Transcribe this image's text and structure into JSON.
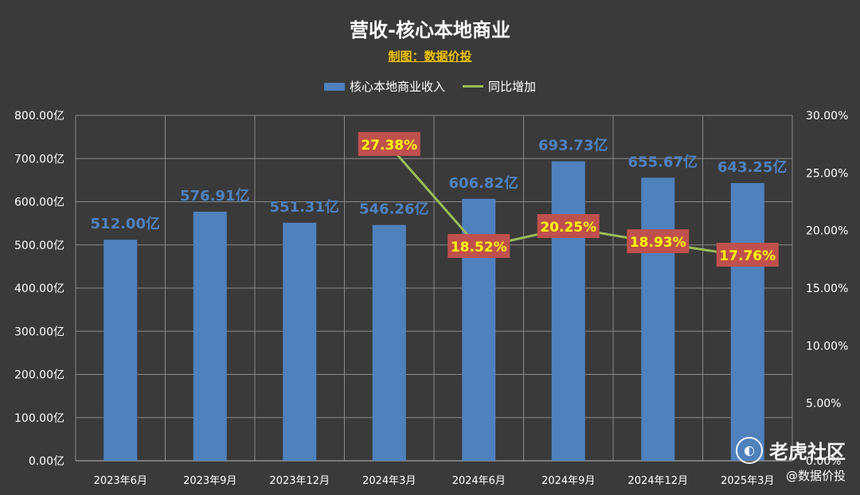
{
  "title": "营收-核心本地商业",
  "subtitle": "制图：数据价投",
  "legend": {
    "bar_label": "核心本地商业收入",
    "line_label": "同比增加"
  },
  "watermark": {
    "brand": "老虎社区",
    "user": "@数据价投"
  },
  "colors": {
    "background": "#3a3a3a",
    "bar": "#4f81bd",
    "line": "#9bbb59",
    "bar_label": "#4f81bd",
    "line_label_bg": "#c0504d",
    "line_label_text": "#ffff00",
    "axis_text": "#ffffff",
    "grid": "#8a8a8a"
  },
  "chart_data": {
    "type": "bar",
    "categories": [
      "2023年6月",
      "2023年9月",
      "2023年12月",
      "2024年3月",
      "2024年6月",
      "2024年9月",
      "2024年12月",
      "2025年3月"
    ],
    "series": [
      {
        "name": "核心本地商业收入",
        "type": "bar",
        "axis": "left",
        "values": [
          512.0,
          576.91,
          551.31,
          546.26,
          606.82,
          693.73,
          655.67,
          643.25
        ],
        "labels": [
          "512.00亿",
          "576.91亿",
          "551.31亿",
          "546.26亿",
          "606.82亿",
          "693.73亿",
          "655.67亿",
          "643.25亿"
        ]
      },
      {
        "name": "同比增加",
        "type": "line",
        "axis": "right",
        "values": [
          null,
          null,
          null,
          27.38,
          18.52,
          20.25,
          18.93,
          17.76
        ],
        "labels": [
          null,
          null,
          null,
          "27.38%",
          "18.52%",
          "20.25%",
          "18.93%",
          "17.76%"
        ]
      }
    ],
    "y_left": {
      "min": 0,
      "max": 800,
      "ticks": [
        "0.00亿",
        "100.00亿",
        "200.00亿",
        "300.00亿",
        "400.00亿",
        "500.00亿",
        "600.00亿",
        "700.00亿",
        "800.00亿"
      ]
    },
    "y_right": {
      "min": 0,
      "max": 30,
      "ticks": [
        "0.00%",
        "5.00%",
        "10.00%",
        "15.00%",
        "20.00%",
        "25.00%",
        "30.00%"
      ]
    },
    "grid": true,
    "legend_position": "top"
  }
}
